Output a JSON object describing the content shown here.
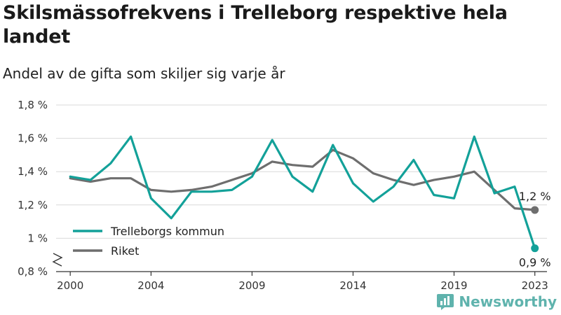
{
  "title": "Skilsmässofrekvens i Trelleborg respektive hela landet",
  "subtitle": "Andel av de gifta som skiljer sig varje år",
  "brand": {
    "name": "Newsworthy",
    "icon": "bar-chart-icon"
  },
  "colors": {
    "trelleborg": "#13a199",
    "riket": "#6e6e6e",
    "grid": "#d9d9d9",
    "axis": "#333333"
  },
  "chart_data": {
    "type": "line",
    "title": "Skilsmässofrekvens i Trelleborg respektive hela landet",
    "subtitle": "Andel av de gifta som skiljer sig varje år",
    "x": [
      2000,
      2001,
      2002,
      2003,
      2004,
      2005,
      2006,
      2007,
      2008,
      2009,
      2010,
      2011,
      2012,
      2013,
      2014,
      2015,
      2016,
      2017,
      2018,
      2019,
      2020,
      2021,
      2022,
      2023
    ],
    "x_ticks": [
      {
        "value": 2000,
        "label": "2000"
      },
      {
        "value": 2004,
        "label": "2004"
      },
      {
        "value": 2009,
        "label": "2009"
      },
      {
        "value": 2014,
        "label": "2014"
      },
      {
        "value": 2019,
        "label": "2019"
      },
      {
        "value": 2023,
        "label": "2023"
      }
    ],
    "y_ticks": [
      {
        "value": 0.8,
        "label": "0,8 %"
      },
      {
        "value": 1.0,
        "label": "1 %"
      },
      {
        "value": 1.2,
        "label": "1,2 %"
      },
      {
        "value": 1.4,
        "label": "1,4 %"
      },
      {
        "value": 1.6,
        "label": "1,6 %"
      },
      {
        "value": 1.8,
        "label": "1,8 %"
      }
    ],
    "ylim": [
      0.8,
      1.8
    ],
    "xlim": [
      1999.3,
      2023.6
    ],
    "axis_break": true,
    "grid": true,
    "legend_position": "bottom-left",
    "series": [
      {
        "name": "Trelleborgs kommun",
        "key": "trelleborg",
        "values": [
          1.37,
          1.35,
          1.45,
          1.61,
          1.24,
          1.12,
          1.28,
          1.28,
          1.29,
          1.37,
          1.59,
          1.37,
          1.28,
          1.56,
          1.33,
          1.22,
          1.31,
          1.47,
          1.26,
          1.24,
          1.61,
          1.27,
          1.31,
          0.94
        ],
        "end_label": "0,9 %"
      },
      {
        "name": "Riket",
        "key": "riket",
        "values": [
          1.36,
          1.34,
          1.36,
          1.36,
          1.29,
          1.28,
          1.29,
          1.31,
          1.35,
          1.39,
          1.46,
          1.44,
          1.43,
          1.53,
          1.48,
          1.39,
          1.35,
          1.32,
          1.35,
          1.37,
          1.4,
          1.29,
          1.18,
          1.17
        ],
        "end_label": "1,2 %"
      }
    ]
  }
}
